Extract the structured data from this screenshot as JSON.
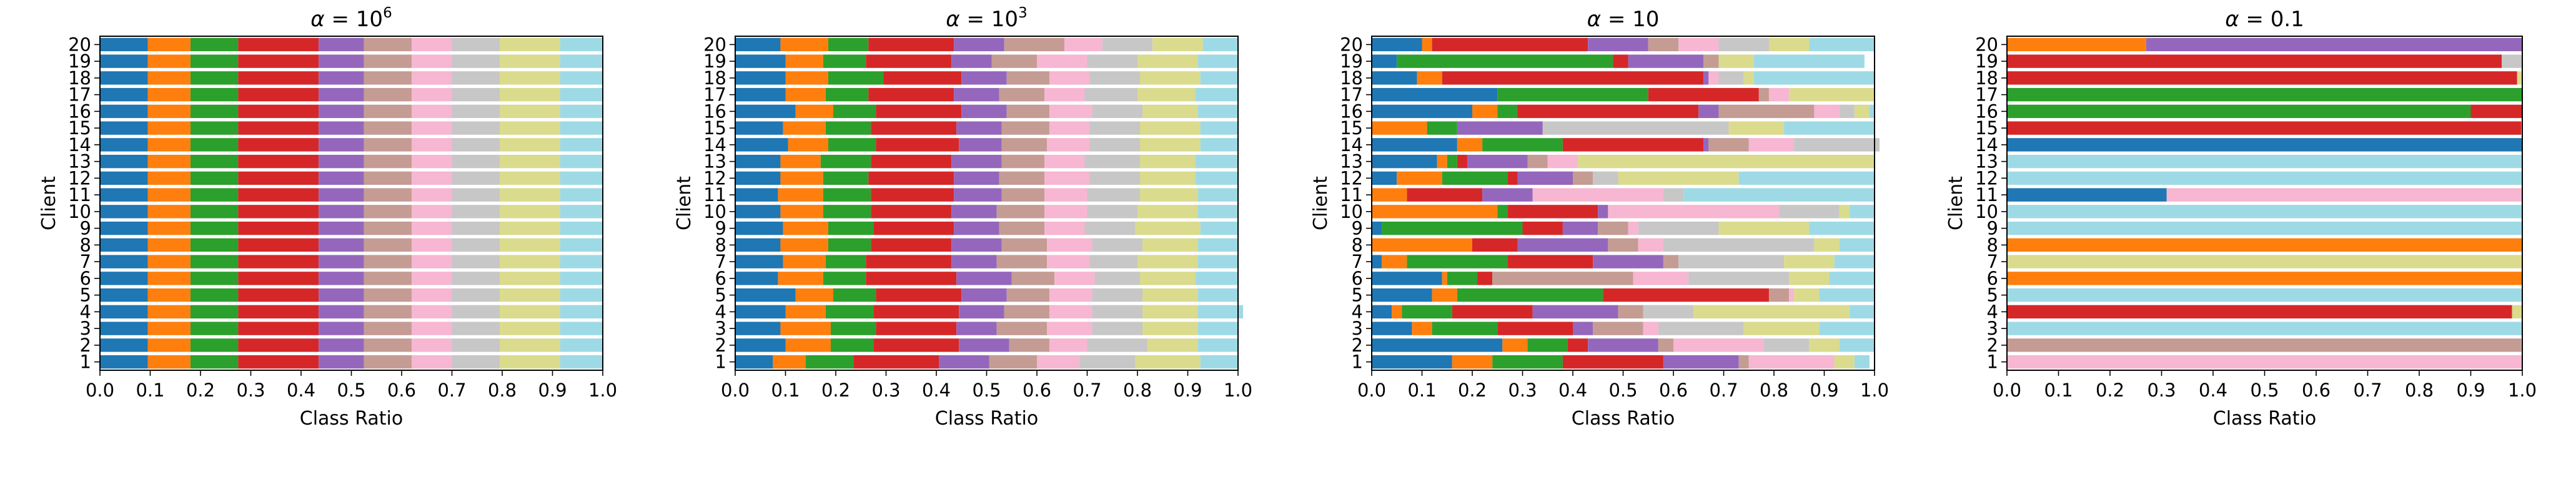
{
  "figure": {
    "description_free": true
  },
  "colors": [
    "#1f77b4",
    "#ff7f0e",
    "#2ca02c",
    "#d62728",
    "#9467bd",
    "#c49c94",
    "#f7b6d2",
    "#c7c7c7",
    "#dbdb8d",
    "#9edae5"
  ],
  "chart_data": [
    {
      "type": "bar",
      "orientation": "horizontal-stacked",
      "title_prefix": "α = ",
      "title_main": "10",
      "title_exp": "6",
      "xlabel": "Class Ratio",
      "ylabel": "Client",
      "xlim": [
        0,
        1.0
      ],
      "xticks": [
        "0.0",
        "0.1",
        "0.2",
        "0.3",
        "0.4",
        "0.5",
        "0.6",
        "0.7",
        "0.8",
        "0.9",
        "1.0"
      ],
      "clients": [
        "1",
        "2",
        "3",
        "4",
        "5",
        "6",
        "7",
        "8",
        "9",
        "10",
        "11",
        "12",
        "13",
        "14",
        "15",
        "16",
        "17",
        "18",
        "19",
        "20"
      ],
      "rows": [
        [
          0.095,
          0.085,
          0.095,
          0.16,
          0.09,
          0.095,
          0.08,
          0.095,
          0.12,
          0.085
        ],
        [
          0.095,
          0.085,
          0.095,
          0.16,
          0.09,
          0.095,
          0.08,
          0.095,
          0.12,
          0.085
        ],
        [
          0.095,
          0.085,
          0.095,
          0.16,
          0.09,
          0.095,
          0.08,
          0.095,
          0.12,
          0.085
        ],
        [
          0.095,
          0.085,
          0.095,
          0.16,
          0.09,
          0.095,
          0.08,
          0.095,
          0.12,
          0.085
        ],
        [
          0.095,
          0.085,
          0.095,
          0.16,
          0.09,
          0.095,
          0.08,
          0.095,
          0.12,
          0.085
        ],
        [
          0.095,
          0.085,
          0.095,
          0.16,
          0.09,
          0.095,
          0.08,
          0.095,
          0.12,
          0.085
        ],
        [
          0.095,
          0.085,
          0.095,
          0.16,
          0.09,
          0.095,
          0.08,
          0.095,
          0.12,
          0.085
        ],
        [
          0.095,
          0.085,
          0.095,
          0.16,
          0.09,
          0.095,
          0.08,
          0.095,
          0.12,
          0.085
        ],
        [
          0.095,
          0.085,
          0.095,
          0.16,
          0.09,
          0.095,
          0.08,
          0.095,
          0.12,
          0.085
        ],
        [
          0.095,
          0.085,
          0.095,
          0.16,
          0.09,
          0.095,
          0.08,
          0.095,
          0.12,
          0.085
        ],
        [
          0.095,
          0.085,
          0.095,
          0.16,
          0.09,
          0.095,
          0.08,
          0.095,
          0.12,
          0.085
        ],
        [
          0.095,
          0.085,
          0.095,
          0.16,
          0.09,
          0.095,
          0.08,
          0.095,
          0.12,
          0.085
        ],
        [
          0.095,
          0.085,
          0.095,
          0.16,
          0.09,
          0.095,
          0.08,
          0.095,
          0.12,
          0.085
        ],
        [
          0.095,
          0.085,
          0.095,
          0.16,
          0.09,
          0.095,
          0.08,
          0.095,
          0.12,
          0.085
        ],
        [
          0.095,
          0.085,
          0.095,
          0.16,
          0.09,
          0.095,
          0.08,
          0.095,
          0.12,
          0.085
        ],
        [
          0.095,
          0.085,
          0.095,
          0.16,
          0.09,
          0.095,
          0.08,
          0.095,
          0.12,
          0.085
        ],
        [
          0.095,
          0.085,
          0.095,
          0.16,
          0.09,
          0.095,
          0.08,
          0.095,
          0.12,
          0.085
        ],
        [
          0.095,
          0.085,
          0.095,
          0.16,
          0.09,
          0.095,
          0.08,
          0.095,
          0.12,
          0.085
        ],
        [
          0.095,
          0.085,
          0.095,
          0.16,
          0.09,
          0.095,
          0.08,
          0.095,
          0.12,
          0.085
        ],
        [
          0.095,
          0.085,
          0.095,
          0.16,
          0.09,
          0.095,
          0.08,
          0.095,
          0.12,
          0.085
        ]
      ]
    },
    {
      "type": "bar",
      "orientation": "horizontal-stacked",
      "title_prefix": "α = ",
      "title_main": "10",
      "title_exp": "3",
      "xlabel": "Class Ratio",
      "ylabel": "Client",
      "xlim": [
        0,
        1.0
      ],
      "xticks": [
        "0.0",
        "0.1",
        "0.2",
        "0.3",
        "0.4",
        "0.5",
        "0.6",
        "0.7",
        "0.8",
        "0.9",
        "1.0"
      ],
      "clients": [
        "1",
        "2",
        "3",
        "4",
        "5",
        "6",
        "7",
        "8",
        "9",
        "10",
        "11",
        "12",
        "13",
        "14",
        "15",
        "16",
        "17",
        "18",
        "19",
        "20"
      ],
      "rows": [
        [
          0.075,
          0.065,
          0.095,
          0.17,
          0.1,
          0.095,
          0.085,
          0.11,
          0.13,
          0.075
        ],
        [
          0.1,
          0.09,
          0.085,
          0.17,
          0.1,
          0.08,
          0.075,
          0.12,
          0.1,
          0.08
        ],
        [
          0.09,
          0.1,
          0.09,
          0.16,
          0.08,
          0.1,
          0.09,
          0.1,
          0.11,
          0.08
        ],
        [
          0.1,
          0.08,
          0.095,
          0.17,
          0.09,
          0.09,
          0.085,
          0.1,
          0.11,
          0.09
        ],
        [
          0.12,
          0.075,
          0.085,
          0.17,
          0.09,
          0.085,
          0.085,
          0.1,
          0.11,
          0.08
        ],
        [
          0.085,
          0.09,
          0.085,
          0.18,
          0.11,
          0.085,
          0.08,
          0.09,
          0.11,
          0.085
        ],
        [
          0.095,
          0.085,
          0.08,
          0.17,
          0.09,
          0.1,
          0.085,
          0.095,
          0.12,
          0.08
        ],
        [
          0.09,
          0.095,
          0.085,
          0.16,
          0.1,
          0.09,
          0.09,
          0.1,
          0.11,
          0.08
        ],
        [
          0.095,
          0.09,
          0.09,
          0.16,
          0.09,
          0.09,
          0.08,
          0.1,
          0.13,
          0.075
        ],
        [
          0.09,
          0.085,
          0.095,
          0.16,
          0.09,
          0.095,
          0.085,
          0.1,
          0.12,
          0.08
        ],
        [
          0.085,
          0.09,
          0.095,
          0.165,
          0.095,
          0.085,
          0.085,
          0.105,
          0.115,
          0.08
        ],
        [
          0.09,
          0.085,
          0.09,
          0.17,
          0.09,
          0.09,
          0.09,
          0.1,
          0.11,
          0.085
        ],
        [
          0.09,
          0.08,
          0.1,
          0.16,
          0.1,
          0.085,
          0.08,
          0.11,
          0.11,
          0.085
        ],
        [
          0.105,
          0.08,
          0.095,
          0.165,
          0.085,
          0.09,
          0.085,
          0.1,
          0.12,
          0.075
        ],
        [
          0.095,
          0.085,
          0.09,
          0.17,
          0.09,
          0.095,
          0.08,
          0.1,
          0.12,
          0.075
        ],
        [
          0.12,
          0.075,
          0.085,
          0.17,
          0.09,
          0.085,
          0.085,
          0.1,
          0.11,
          0.08
        ],
        [
          0.1,
          0.08,
          0.085,
          0.17,
          0.09,
          0.09,
          0.08,
          0.105,
          0.115,
          0.085
        ],
        [
          0.1,
          0.085,
          0.11,
          0.155,
          0.09,
          0.085,
          0.08,
          0.1,
          0.12,
          0.075
        ],
        [
          0.1,
          0.075,
          0.085,
          0.17,
          0.08,
          0.09,
          0.1,
          0.1,
          0.12,
          0.08
        ],
        [
          0.09,
          0.095,
          0.08,
          0.17,
          0.1,
          0.12,
          0.075,
          0.1,
          0.1,
          0.07
        ]
      ]
    },
    {
      "type": "bar",
      "orientation": "horizontal-stacked",
      "title_prefix": "α = ",
      "title_main": "10",
      "title_exp": "",
      "xlabel": "Class Ratio",
      "ylabel": "Client",
      "xlim": [
        0,
        1.0
      ],
      "xticks": [
        "0.0",
        "0.1",
        "0.2",
        "0.3",
        "0.4",
        "0.5",
        "0.6",
        "0.7",
        "0.8",
        "0.9",
        "1.0"
      ],
      "clients": [
        "1",
        "2",
        "3",
        "4",
        "5",
        "6",
        "7",
        "8",
        "9",
        "10",
        "11",
        "12",
        "13",
        "14",
        "15",
        "16",
        "17",
        "18",
        "19",
        "20"
      ],
      "rows": [
        [
          0.16,
          0.08,
          0.14,
          0.2,
          0.15,
          0.02,
          0.17,
          0.0,
          0.04,
          0.03
        ],
        [
          0.26,
          0.05,
          0.08,
          0.04,
          0.14,
          0.03,
          0.18,
          0.09,
          0.06,
          0.07
        ],
        [
          0.08,
          0.04,
          0.13,
          0.15,
          0.04,
          0.1,
          0.03,
          0.17,
          0.15,
          0.11
        ],
        [
          0.04,
          0.02,
          0.1,
          0.16,
          0.17,
          0.05,
          0.0,
          0.1,
          0.31,
          0.05
        ],
        [
          0.12,
          0.05,
          0.29,
          0.33,
          0.0,
          0.04,
          0.01,
          0.0,
          0.05,
          0.11
        ],
        [
          0.14,
          0.01,
          0.06,
          0.03,
          0.0,
          0.28,
          0.11,
          0.2,
          0.08,
          0.09
        ],
        [
          0.02,
          0.05,
          0.2,
          0.17,
          0.14,
          0.03,
          0.0,
          0.21,
          0.1,
          0.08
        ],
        [
          0.0,
          0.2,
          0.0,
          0.09,
          0.18,
          0.06,
          0.05,
          0.3,
          0.05,
          0.07
        ],
        [
          0.02,
          0.0,
          0.28,
          0.08,
          0.07,
          0.06,
          0.02,
          0.16,
          0.18,
          0.13
        ],
        [
          0.0,
          0.25,
          0.02,
          0.18,
          0.02,
          0.0,
          0.34,
          0.12,
          0.02,
          0.05
        ],
        [
          0.0,
          0.07,
          0.0,
          0.15,
          0.1,
          0.0,
          0.26,
          0.04,
          0.0,
          0.38
        ],
        [
          0.05,
          0.09,
          0.13,
          0.02,
          0.11,
          0.04,
          0.0,
          0.05,
          0.24,
          0.27
        ],
        [
          0.13,
          0.02,
          0.02,
          0.02,
          0.12,
          0.04,
          0.06,
          0.0,
          0.59,
          0.0
        ],
        [
          0.17,
          0.05,
          0.16,
          0.28,
          0.01,
          0.08,
          0.09,
          0.17,
          0.0,
          0.0
        ],
        [
          0.0,
          0.11,
          0.06,
          0.0,
          0.17,
          0.0,
          0.0,
          0.37,
          0.11,
          0.18
        ],
        [
          0.2,
          0.05,
          0.04,
          0.36,
          0.04,
          0.19,
          0.05,
          0.03,
          0.03,
          0.01
        ],
        [
          0.25,
          0.0,
          0.3,
          0.22,
          0.0,
          0.02,
          0.04,
          0.0,
          0.17,
          0.0
        ],
        [
          0.09,
          0.05,
          0.0,
          0.52,
          0.01,
          0.0,
          0.02,
          0.05,
          0.02,
          0.24
        ],
        [
          0.05,
          0.0,
          0.43,
          0.03,
          0.15,
          0.03,
          0.0,
          0.0,
          0.07,
          0.22
        ],
        [
          0.1,
          0.02,
          0.0,
          0.31,
          0.12,
          0.06,
          0.08,
          0.1,
          0.08,
          0.13
        ]
      ]
    },
    {
      "type": "bar",
      "orientation": "horizontal-stacked",
      "title_prefix": "α = ",
      "title_main": "0.1",
      "title_exp": "",
      "xlabel": "Class Ratio",
      "ylabel": "Client",
      "xlim": [
        0,
        1.0
      ],
      "xticks": [
        "0.0",
        "0.1",
        "0.2",
        "0.3",
        "0.4",
        "0.5",
        "0.6",
        "0.7",
        "0.8",
        "0.9",
        "1.0"
      ],
      "clients": [
        "1",
        "2",
        "3",
        "4",
        "5",
        "6",
        "7",
        "8",
        "9",
        "10",
        "11",
        "12",
        "13",
        "14",
        "15",
        "16",
        "17",
        "18",
        "19",
        "20"
      ],
      "rows": [
        [
          0,
          0,
          0,
          0,
          0,
          0,
          1.0,
          0,
          0,
          0
        ],
        [
          0,
          0,
          0,
          0,
          0,
          0.998,
          0,
          0,
          0,
          0.002
        ],
        [
          0,
          0,
          0,
          0,
          0,
          0,
          0,
          0,
          0,
          1.0
        ],
        [
          0,
          0,
          0,
          0.98,
          0,
          0,
          0,
          0,
          0.02,
          0
        ],
        [
          0,
          0,
          0,
          0,
          0,
          0,
          0,
          0,
          0,
          1.0
        ],
        [
          0,
          1.0,
          0,
          0,
          0,
          0,
          0,
          0,
          0,
          0
        ],
        [
          0,
          0,
          0,
          0,
          0,
          0,
          0,
          0,
          1.0,
          0
        ],
        [
          0,
          1.0,
          0,
          0,
          0,
          0,
          0,
          0,
          0,
          0
        ],
        [
          0,
          0,
          0,
          0,
          0,
          0,
          0,
          0,
          0,
          1.0
        ],
        [
          0,
          0,
          0,
          0,
          0,
          0,
          0,
          0,
          0,
          1.0
        ],
        [
          0.31,
          0,
          0,
          0,
          0,
          0,
          0.69,
          0,
          0,
          0
        ],
        [
          0,
          0,
          0,
          0,
          0,
          0,
          0,
          0,
          0,
          1.0
        ],
        [
          0,
          0,
          0,
          0,
          0,
          0,
          0,
          0,
          0,
          1.0
        ],
        [
          1.0,
          0,
          0,
          0,
          0,
          0,
          0,
          0,
          0,
          0
        ],
        [
          0,
          0,
          0,
          0.998,
          0,
          0,
          0,
          0,
          0,
          0.002
        ],
        [
          0,
          0,
          0.9,
          0.1,
          0,
          0,
          0,
          0,
          0,
          0
        ],
        [
          0,
          0,
          1.0,
          0,
          0,
          0,
          0,
          0,
          0,
          0
        ],
        [
          0,
          0,
          0,
          0.99,
          0,
          0,
          0,
          0,
          0.01,
          0
        ],
        [
          0,
          0,
          0,
          0.96,
          0,
          0,
          0,
          0.04,
          0,
          0
        ],
        [
          0,
          0.27,
          0,
          0,
          0.73,
          0,
          0,
          0,
          0,
          0
        ]
      ]
    }
  ]
}
